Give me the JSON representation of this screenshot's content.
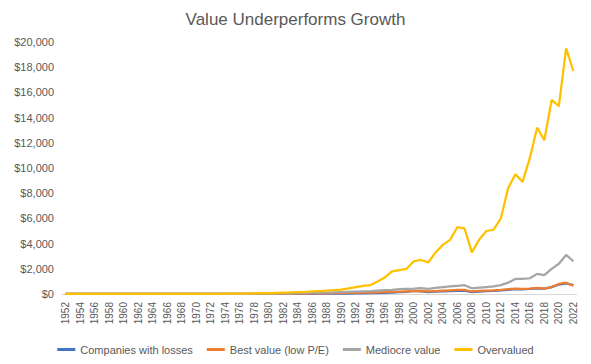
{
  "chart_data": {
    "type": "line",
    "title": "Value Underperforms Growth",
    "categories": [
      "1952",
      null,
      "1954",
      null,
      "1956",
      null,
      "1958",
      null,
      "1960",
      null,
      "1962",
      null,
      "1964",
      null,
      "1966",
      null,
      "1968",
      null,
      "1970",
      null,
      "1972",
      null,
      "1974",
      null,
      "1976",
      null,
      "1978",
      null,
      "1980",
      null,
      "1982",
      null,
      "1984",
      null,
      "1986",
      null,
      "1988",
      null,
      "1990",
      null,
      "1992",
      null,
      "1994",
      null,
      "1996",
      null,
      "1998",
      null,
      "2000",
      null,
      "2002",
      null,
      "2004",
      null,
      "2006",
      null,
      "2008",
      null,
      "2010",
      null,
      "2012",
      null,
      "2014",
      null,
      "2016",
      null,
      "2018",
      null,
      "2020",
      null,
      "2022"
    ],
    "series": [
      {
        "name": "Companies with losses",
        "color": "#4472c4",
        "values": [
          1,
          1,
          1,
          1,
          1,
          1,
          1,
          1,
          1,
          1,
          1,
          2,
          2,
          2,
          2,
          2,
          2,
          3,
          3,
          3,
          3,
          3,
          4,
          4,
          5,
          5,
          6,
          7,
          8,
          9,
          10,
          12,
          14,
          16,
          18,
          20,
          24,
          28,
          32,
          36,
          40,
          50,
          60,
          70,
          90,
          110,
          140,
          170,
          250,
          200,
          150,
          180,
          200,
          220,
          250,
          260,
          150,
          180,
          220,
          240,
          280,
          320,
          380,
          370,
          400,
          450,
          420,
          550,
          750,
          850,
          700
        ]
      },
      {
        "name": "Best value (low P/E)",
        "color": "#ed7d31",
        "values": [
          1,
          1,
          1,
          1,
          1,
          2,
          2,
          2,
          2,
          2,
          2,
          3,
          3,
          3,
          3,
          4,
          4,
          4,
          5,
          5,
          5,
          6,
          6,
          7,
          8,
          9,
          10,
          12,
          14,
          16,
          20,
          25,
          30,
          35,
          40,
          45,
          50,
          60,
          70,
          80,
          90,
          100,
          110,
          130,
          150,
          170,
          190,
          210,
          230,
          250,
          200,
          230,
          260,
          290,
          320,
          330,
          200,
          240,
          270,
          290,
          320,
          380,
          420,
          400,
          430,
          480,
          430,
          550,
          800,
          900,
          650
        ]
      },
      {
        "name": "Mediocre value",
        "color": "#a5a5a5",
        "values": [
          1,
          1,
          1,
          2,
          2,
          2,
          2,
          3,
          3,
          3,
          3,
          4,
          4,
          4,
          5,
          5,
          6,
          6,
          7,
          7,
          8,
          9,
          10,
          11,
          12,
          14,
          18,
          22,
          26,
          30,
          40,
          50,
          60,
          70,
          80,
          90,
          100,
          120,
          140,
          160,
          180,
          200,
          220,
          260,
          300,
          330,
          380,
          400,
          420,
          460,
          400,
          480,
          550,
          600,
          650,
          700,
          450,
          500,
          550,
          600,
          700,
          900,
          1200,
          1200,
          1250,
          1600,
          1500,
          2000,
          2400,
          3100,
          2600
        ]
      },
      {
        "name": "Overvalued",
        "color": "#ffc000",
        "values": [
          1,
          1,
          2,
          2,
          3,
          3,
          4,
          4,
          5,
          5,
          6,
          6,
          7,
          8,
          9,
          10,
          11,
          12,
          13,
          14,
          16,
          18,
          20,
          22,
          26,
          30,
          50,
          60,
          70,
          80,
          100,
          120,
          150,
          170,
          200,
          230,
          260,
          300,
          350,
          450,
          550,
          650,
          700,
          1000,
          1300,
          1800,
          1900,
          2000,
          2600,
          2700,
          2500,
          3300,
          3900,
          4300,
          5300,
          5200,
          3300,
          4300,
          5000,
          5100,
          6000,
          8400,
          9500,
          8900,
          10800,
          13200,
          12200,
          15400,
          14900,
          19500,
          17700
        ]
      }
    ],
    "ylim": [
      0,
      20000
    ],
    "yticks": [
      {
        "value": 0,
        "label": "$0"
      },
      {
        "value": 2000,
        "label": "$2,000"
      },
      {
        "value": 4000,
        "label": "$4,000"
      },
      {
        "value": 6000,
        "label": "$6,000"
      },
      {
        "value": 8000,
        "label": "$8,000"
      },
      {
        "value": 10000,
        "label": "$10,000"
      },
      {
        "value": 12000,
        "label": "$12,000"
      },
      {
        "value": 14000,
        "label": "$14,000"
      },
      {
        "value": 16000,
        "label": "$16,000"
      },
      {
        "value": 18000,
        "label": "$18,000"
      },
      {
        "value": 20000,
        "label": "$20,000"
      }
    ],
    "grid": false,
    "legend": "bottom"
  }
}
